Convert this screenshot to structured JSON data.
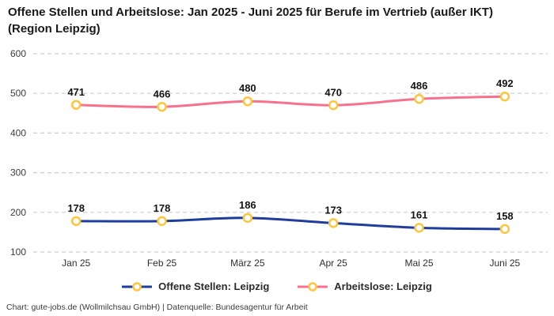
{
  "header": {
    "title": "Offene Stellen und Arbeitslose: Jan 2025 - Juni 2025 für Berufe im Vertrieb (außer IKT) (Region Leipzig)"
  },
  "chart_data": {
    "type": "line",
    "title": "Offene Stellen und Arbeitslose: Jan 2025 - Juni 2025 für Berufe im Vertrieb (außer IKT) (Region Leipzig)",
    "categories": [
      "Jan 25",
      "Feb 25",
      "März 25",
      "Apr 25",
      "Mai 25",
      "Juni 25"
    ],
    "series": [
      {
        "name": "Offene Stellen: Leipzig",
        "color": "#1F3D9C",
        "values": [
          178,
          178,
          186,
          173,
          161,
          158
        ]
      },
      {
        "name": "Arbeitslose: Leipzig",
        "color": "#F8718C",
        "values": [
          471,
          466,
          480,
          470,
          486,
          492
        ]
      }
    ],
    "ylim": [
      100,
      600
    ],
    "yticks": [
      100,
      200,
      300,
      400,
      500,
      600
    ],
    "grid": "horizontal-dashed",
    "gridline_color": "#cdcdcd",
    "legend_position": "bottom",
    "marker": {
      "shape": "circle",
      "stroke": "#FFC53D",
      "fill": "#FFFFFF"
    },
    "xlabel": "",
    "ylabel": ""
  },
  "footer": {
    "credit": "Chart: gute-jobs.de (Wollmilchsau GmbH) | Datenquelle: Bundesagentur für Arbeit"
  }
}
